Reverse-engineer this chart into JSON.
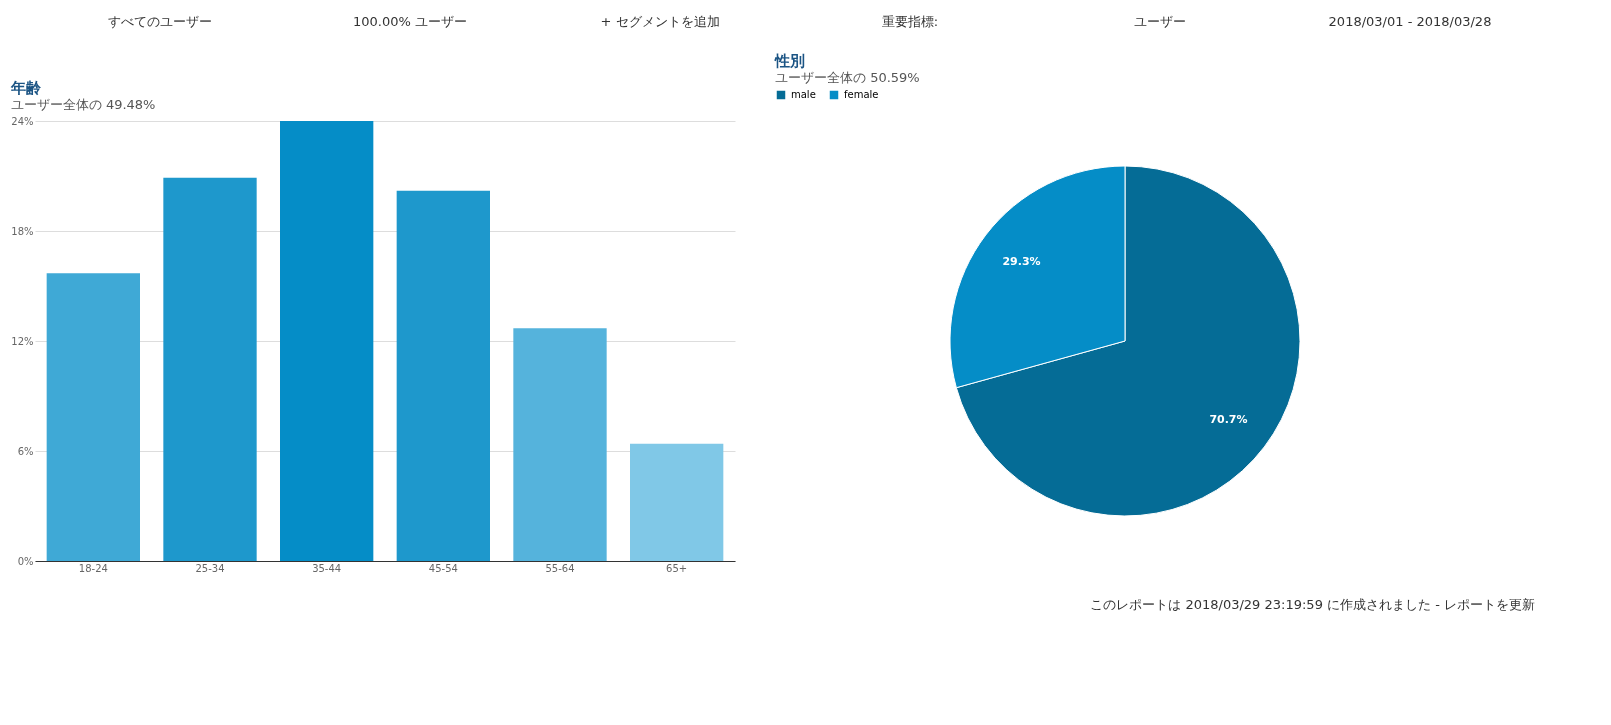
{
  "chart_data": [
    {
      "type": "bar",
      "title": "年齢",
      "subtitle": "ユーザー全体の 49.48%",
      "categories": [
        "18-24",
        "25-34",
        "35-44",
        "45-54",
        "55-64",
        "65+"
      ],
      "values": [
        15.7,
        20.9,
        24.0,
        20.2,
        12.7,
        6.4
      ],
      "colors": [
        "#3fa9d6",
        "#1e98cc",
        "#058dc7",
        "#1e98cc",
        "#55b3dc",
        "#80c8e7"
      ],
      "ylim": [
        0,
        24
      ],
      "yticks": [
        {
          "value": 0,
          "label": "0%"
        },
        {
          "value": 6,
          "label": "6%"
        },
        {
          "value": 12,
          "label": "12%"
        },
        {
          "value": 18,
          "label": "18%"
        },
        {
          "value": 24,
          "label": "24%"
        }
      ],
      "grid": "y",
      "legend": false,
      "annotations": [
        "すべてのユーザー",
        "100.00% ユーザー",
        "+ セグメントを追加",
        "重要指標:",
        "ユーザー",
        "2018/03/01 - 2018/03/28"
      ]
    },
    {
      "type": "pie",
      "title": "性別",
      "subtitle": "ユーザー全体の 50.59%",
      "categories": [
        "male",
        "female"
      ],
      "values": [
        70.7,
        29.3
      ],
      "colors": [
        "#056c96",
        "#058dc7"
      ],
      "value_labels": [
        "70.7%",
        "29.3%"
      ],
      "legend": "top",
      "annotations": [
        "このレポートは 2018/03/29 23:19:59 に作成されました - レポートを更新"
      ]
    }
  ]
}
